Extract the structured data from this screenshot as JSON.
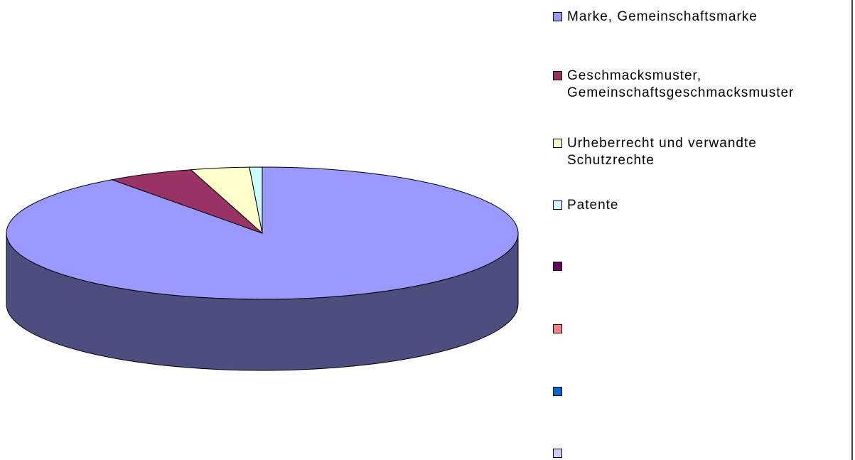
{
  "chart_data": {
    "type": "pie",
    "categories": [
      "Marke, Gemeinschaftsmarke",
      "Geschmacksmuster, Gemeinschaftsgeschmacksmuster",
      "Urheberrecht und verwandte Schutzrechte",
      "Patente",
      null,
      null,
      null,
      null
    ],
    "values": [
      90,
      5.5,
      3.7,
      0.8,
      0,
      0,
      0,
      0
    ],
    "colors": [
      "#9999ff",
      "#993366",
      "#ffffcc",
      "#ccffff",
      "#660066",
      "#ff8080",
      "#0066cc",
      "#ccccff"
    ],
    "three_d": true,
    "legend": "right"
  }
}
